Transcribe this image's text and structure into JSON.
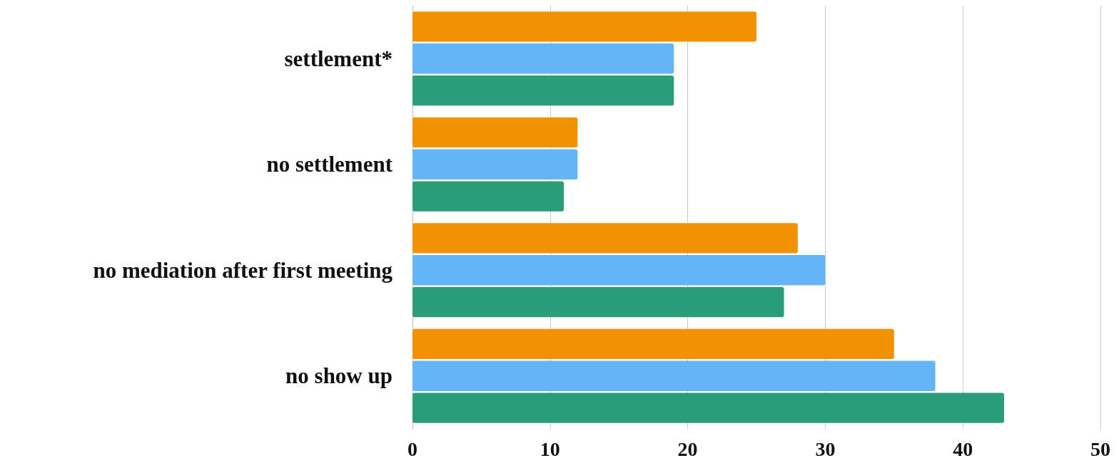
{
  "chart_data": {
    "type": "bar",
    "orientation": "horizontal",
    "categories": [
      "settlement*",
      "no settlement",
      "no mediation after first meeting",
      "no show up"
    ],
    "series": [
      {
        "color": "#f39200",
        "values": [
          25,
          12,
          28,
          35
        ]
      },
      {
        "color": "#64b5f6",
        "values": [
          19,
          12,
          30,
          38
        ]
      },
      {
        "color": "#2a9d79",
        "values": [
          19,
          11,
          27,
          43
        ]
      }
    ],
    "xlim": [
      0,
      50
    ],
    "xticks": [
      0,
      10,
      20,
      30,
      40,
      50
    ],
    "grid": "x"
  }
}
